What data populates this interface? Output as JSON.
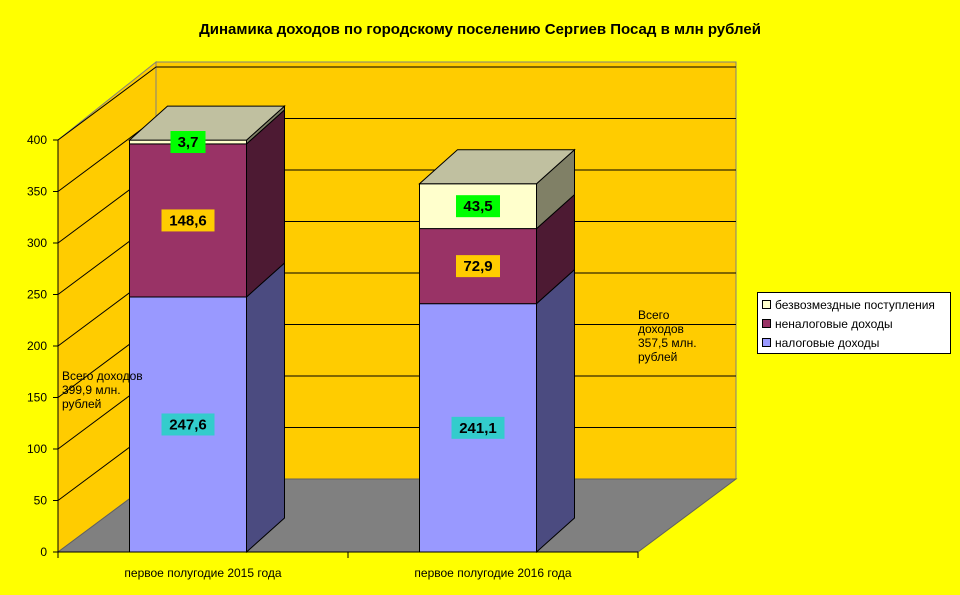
{
  "title": "Динамика доходов по городскому поселению Сергиев Посад в млн рублей",
  "chart_data": {
    "type": "bar",
    "stacked": true,
    "categories": [
      "первое полугодие 2015 года",
      "первое полугодие 2016 года"
    ],
    "series": [
      {
        "name": "налоговые доходы",
        "values": [
          247.6,
          241.1
        ],
        "labels": [
          "247,6",
          "241,1"
        ],
        "color": "#9999FF",
        "side": "#4B4B80",
        "label_bg": "#33CCCC"
      },
      {
        "name": "неналоговые доходы",
        "values": [
          148.6,
          72.9
        ],
        "labels": [
          "148,6",
          "72,9"
        ],
        "color": "#993366",
        "side": "#4D1A33",
        "label_bg": "#FFCC00"
      },
      {
        "name": "безвозмездные поступления",
        "values": [
          3.7,
          43.5
        ],
        "labels": [
          "3,7",
          "43,5"
        ],
        "color": "#FFFFCC",
        "side": "#808066",
        "label_bg": "#00FF00"
      }
    ],
    "ylim": [
      0,
      400
    ],
    "yticks": [
      "0",
      "50",
      "100",
      "150",
      "200",
      "250",
      "300",
      "350",
      "400"
    ],
    "grid": true,
    "legend_position": "right",
    "colors": {
      "background": "#FFFF00",
      "wall": "#FFCC00",
      "floor": "#808080"
    }
  },
  "annotations": {
    "left_total": [
      "Всего доходов",
      "399,9 млн.",
      "рублей"
    ],
    "right_total": [
      "Всего",
      "доходов",
      "357,5 млн.",
      "рублей"
    ]
  }
}
